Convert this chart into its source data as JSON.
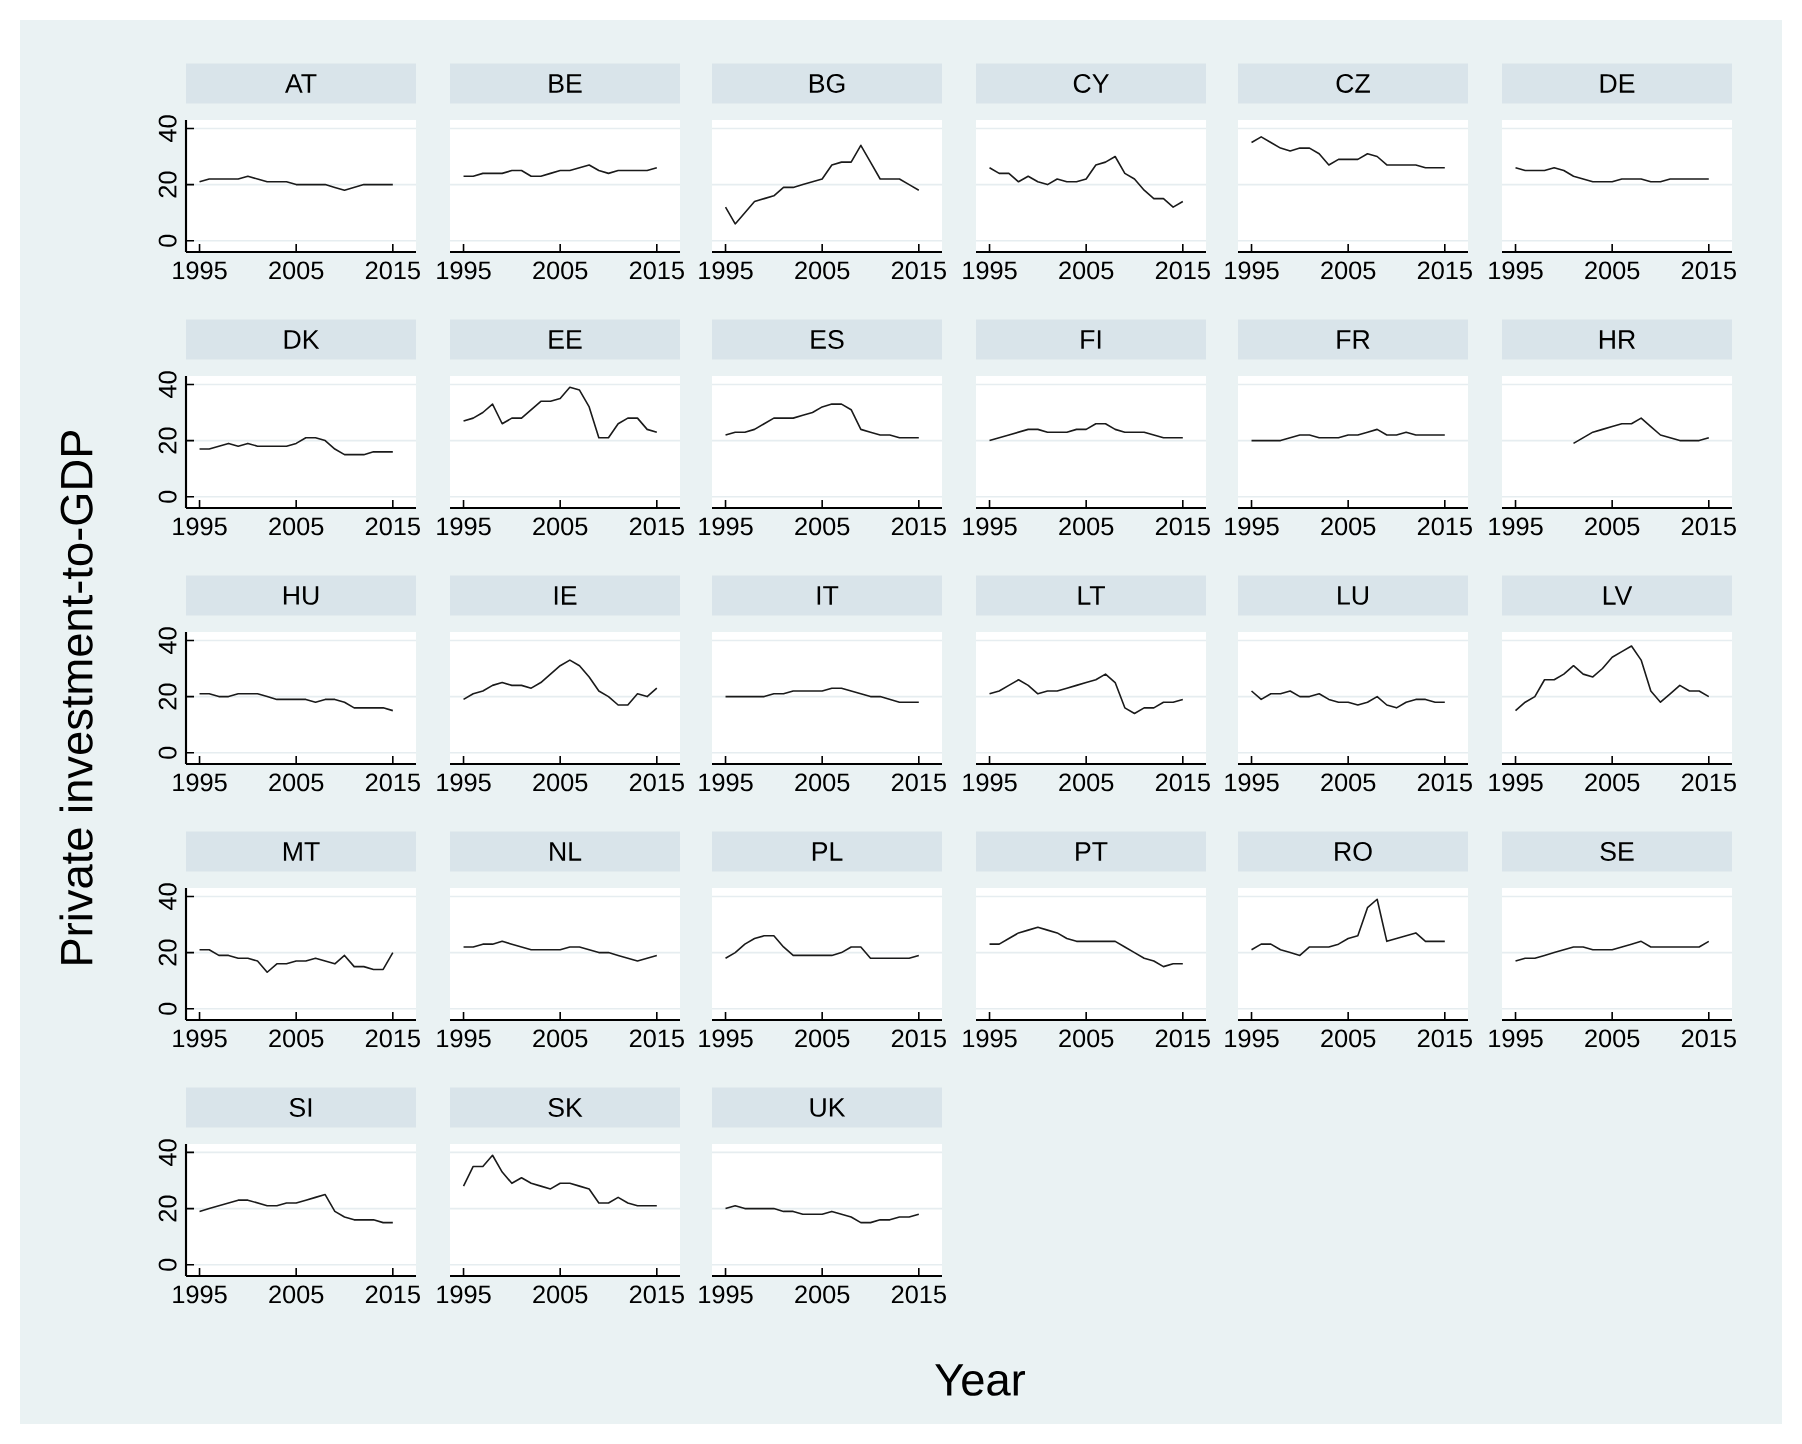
{
  "chart_data": [
    {
      "type": "line",
      "title": "AT",
      "color": "#1a1a1a",
      "grid": "y",
      "xlim": [
        1993.6,
        2017.4
      ],
      "ylim": [
        -4,
        43
      ],
      "xticks": [
        1995,
        2005,
        2015
      ],
      "yticks": [
        0,
        20,
        40
      ],
      "x": [
        1995,
        1996,
        1997,
        1998,
        1999,
        2000,
        2001,
        2002,
        2003,
        2004,
        2005,
        2006,
        2007,
        2008,
        2009,
        2010,
        2011,
        2012,
        2013,
        2014,
        2015
      ],
      "values": [
        21,
        22,
        22,
        22,
        22,
        23,
        22,
        21,
        21,
        21,
        20,
        20,
        20,
        20,
        19,
        18,
        19,
        20,
        20,
        20,
        20
      ]
    },
    {
      "type": "line",
      "title": "BE",
      "tick_labels": "x",
      "color": "#1a1a1a",
      "grid": "y",
      "xlim": [
        1993.6,
        2017.4
      ],
      "ylim": [
        -4,
        43
      ],
      "xticks": [
        1995,
        2005,
        2015
      ],
      "yticks": [
        0,
        20,
        40
      ],
      "x": [
        1995,
        1996,
        1997,
        1998,
        1999,
        2000,
        2001,
        2002,
        2003,
        2004,
        2005,
        2006,
        2007,
        2008,
        2009,
        2010,
        2011,
        2012,
        2013,
        2014,
        2015
      ],
      "values": [
        23,
        23,
        24,
        24,
        24,
        25,
        25,
        23,
        23,
        24,
        25,
        25,
        26,
        27,
        25,
        24,
        25,
        25,
        25,
        25,
        26
      ]
    },
    {
      "type": "line",
      "title": "BG",
      "tick_labels": "x",
      "color": "#1a1a1a",
      "grid": "y",
      "xlim": [
        1993.6,
        2017.4
      ],
      "ylim": [
        -4,
        43
      ],
      "xticks": [
        1995,
        2005,
        2015
      ],
      "yticks": [
        0,
        20,
        40
      ],
      "x": [
        1995,
        1996,
        1997,
        1998,
        1999,
        2000,
        2001,
        2002,
        2003,
        2004,
        2005,
        2006,
        2007,
        2008,
        2009,
        2010,
        2011,
        2012,
        2013,
        2014,
        2015
      ],
      "values": [
        12,
        6,
        10,
        14,
        15,
        16,
        19,
        19,
        20,
        21,
        22,
        27,
        28,
        28,
        34,
        28,
        22,
        22,
        22,
        20,
        18
      ]
    },
    {
      "type": "line",
      "title": "CY",
      "tick_labels": "x",
      "color": "#1a1a1a",
      "grid": "y",
      "xlim": [
        1993.6,
        2017.4
      ],
      "ylim": [
        -4,
        43
      ],
      "xticks": [
        1995,
        2005,
        2015
      ],
      "yticks": [
        0,
        20,
        40
      ],
      "x": [
        1995,
        1996,
        1997,
        1998,
        1999,
        2000,
        2001,
        2002,
        2003,
        2004,
        2005,
        2006,
        2007,
        2008,
        2009,
        2010,
        2011,
        2012,
        2013,
        2014,
        2015
      ],
      "values": [
        26,
        24,
        24,
        21,
        23,
        21,
        20,
        22,
        21,
        21,
        22,
        27,
        28,
        30,
        24,
        22,
        18,
        15,
        15,
        12,
        14
      ]
    },
    {
      "type": "line",
      "title": "CZ",
      "tick_labels": "x",
      "color": "#1a1a1a",
      "grid": "y",
      "xlim": [
        1993.6,
        2017.4
      ],
      "ylim": [
        -4,
        43
      ],
      "xticks": [
        1995,
        2005,
        2015
      ],
      "yticks": [
        0,
        20,
        40
      ],
      "x": [
        1995,
        1996,
        1997,
        1998,
        1999,
        2000,
        2001,
        2002,
        2003,
        2004,
        2005,
        2006,
        2007,
        2008,
        2009,
        2010,
        2011,
        2012,
        2013,
        2014,
        2015
      ],
      "values": [
        35,
        37,
        35,
        33,
        32,
        33,
        33,
        31,
        27,
        29,
        29,
        29,
        31,
        30,
        27,
        27,
        27,
        27,
        26,
        26,
        26
      ]
    },
    {
      "type": "line",
      "title": "DE",
      "tick_labels": "x",
      "color": "#1a1a1a",
      "grid": "y",
      "xlim": [
        1993.6,
        2017.4
      ],
      "ylim": [
        -4,
        43
      ],
      "xticks": [
        1995,
        2005,
        2015
      ],
      "yticks": [
        0,
        20,
        40
      ],
      "x": [
        1995,
        1996,
        1997,
        1998,
        1999,
        2000,
        2001,
        2002,
        2003,
        2004,
        2005,
        2006,
        2007,
        2008,
        2009,
        2010,
        2011,
        2012,
        2013,
        2014,
        2015
      ],
      "values": [
        26,
        25,
        25,
        25,
        26,
        25,
        23,
        22,
        21,
        21,
        21,
        22,
        22,
        22,
        21,
        21,
        22,
        22,
        22,
        22,
        22
      ]
    },
    {
      "type": "line",
      "title": "DK",
      "color": "#1a1a1a",
      "grid": "y",
      "xlim": [
        1993.6,
        2017.4
      ],
      "ylim": [
        -4,
        43
      ],
      "xticks": [
        1995,
        2005,
        2015
      ],
      "yticks": [
        0,
        20,
        40
      ],
      "x": [
        1995,
        1996,
        1997,
        1998,
        1999,
        2000,
        2001,
        2002,
        2003,
        2004,
        2005,
        2006,
        2007,
        2008,
        2009,
        2010,
        2011,
        2012,
        2013,
        2014,
        2015
      ],
      "values": [
        17,
        17,
        18,
        19,
        18,
        19,
        18,
        18,
        18,
        18,
        19,
        21,
        21,
        20,
        17,
        15,
        15,
        15,
        16,
        16,
        16
      ]
    },
    {
      "type": "line",
      "title": "EE",
      "tick_labels": "x",
      "color": "#1a1a1a",
      "grid": "y",
      "xlim": [
        1993.6,
        2017.4
      ],
      "ylim": [
        -4,
        43
      ],
      "xticks": [
        1995,
        2005,
        2015
      ],
      "yticks": [
        0,
        20,
        40
      ],
      "x": [
        1995,
        1996,
        1997,
        1998,
        1999,
        2000,
        2001,
        2002,
        2003,
        2004,
        2005,
        2006,
        2007,
        2008,
        2009,
        2010,
        2011,
        2012,
        2013,
        2014,
        2015
      ],
      "values": [
        27,
        28,
        30,
        33,
        26,
        28,
        28,
        31,
        34,
        34,
        35,
        39,
        38,
        32,
        21,
        21,
        26,
        28,
        28,
        24,
        23
      ]
    },
    {
      "type": "line",
      "title": "ES",
      "tick_labels": "x",
      "color": "#1a1a1a",
      "grid": "y",
      "xlim": [
        1993.6,
        2017.4
      ],
      "ylim": [
        -4,
        43
      ],
      "xticks": [
        1995,
        2005,
        2015
      ],
      "yticks": [
        0,
        20,
        40
      ],
      "x": [
        1995,
        1996,
        1997,
        1998,
        1999,
        2000,
        2001,
        2002,
        2003,
        2004,
        2005,
        2006,
        2007,
        2008,
        2009,
        2010,
        2011,
        2012,
        2013,
        2014,
        2015
      ],
      "values": [
        22,
        23,
        23,
        24,
        26,
        28,
        28,
        28,
        29,
        30,
        32,
        33,
        33,
        31,
        24,
        23,
        22,
        22,
        21,
        21,
        21
      ]
    },
    {
      "type": "line",
      "title": "FI",
      "tick_labels": "x",
      "color": "#1a1a1a",
      "grid": "y",
      "xlim": [
        1993.6,
        2017.4
      ],
      "ylim": [
        -4,
        43
      ],
      "xticks": [
        1995,
        2005,
        2015
      ],
      "yticks": [
        0,
        20,
        40
      ],
      "x": [
        1995,
        1996,
        1997,
        1998,
        1999,
        2000,
        2001,
        2002,
        2003,
        2004,
        2005,
        2006,
        2007,
        2008,
        2009,
        2010,
        2011,
        2012,
        2013,
        2014,
        2015
      ],
      "values": [
        20,
        21,
        22,
        23,
        24,
        24,
        23,
        23,
        23,
        24,
        24,
        26,
        26,
        24,
        23,
        23,
        23,
        22,
        21,
        21,
        21
      ]
    },
    {
      "type": "line",
      "title": "FR",
      "tick_labels": "x",
      "color": "#1a1a1a",
      "grid": "y",
      "xlim": [
        1993.6,
        2017.4
      ],
      "ylim": [
        -4,
        43
      ],
      "xticks": [
        1995,
        2005,
        2015
      ],
      "yticks": [
        0,
        20,
        40
      ],
      "x": [
        1995,
        1996,
        1997,
        1998,
        1999,
        2000,
        2001,
        2002,
        2003,
        2004,
        2005,
        2006,
        2007,
        2008,
        2009,
        2010,
        2011,
        2012,
        2013,
        2014,
        2015
      ],
      "values": [
        20,
        20,
        20,
        20,
        21,
        22,
        22,
        21,
        21,
        21,
        22,
        22,
        23,
        24,
        22,
        22,
        23,
        22,
        22,
        22,
        22
      ]
    },
    {
      "type": "line",
      "title": "HR",
      "tick_labels": "x",
      "color": "#1a1a1a",
      "grid": "y",
      "xlim": [
        1993.6,
        2017.4
      ],
      "ylim": [
        -4,
        43
      ],
      "xticks": [
        1995,
        2005,
        2015
      ],
      "yticks": [
        0,
        20,
        40
      ],
      "x": [
        2001,
        2002,
        2003,
        2004,
        2005,
        2006,
        2007,
        2008,
        2009,
        2010,
        2011,
        2012,
        2013,
        2014,
        2015
      ],
      "values": [
        19,
        21,
        23,
        24,
        25,
        26,
        26,
        28,
        25,
        22,
        21,
        20,
        20,
        20,
        21
      ]
    },
    {
      "type": "line",
      "title": "HU",
      "ylabel": "Private investment-to-GDP",
      "color": "#1a1a1a",
      "grid": "y",
      "xlim": [
        1993.6,
        2017.4
      ],
      "ylim": [
        -4,
        43
      ],
      "xticks": [
        1995,
        2005,
        2015
      ],
      "yticks": [
        0,
        20,
        40
      ],
      "x": [
        1995,
        1996,
        1997,
        1998,
        1999,
        2000,
        2001,
        2002,
        2003,
        2004,
        2005,
        2006,
        2007,
        2008,
        2009,
        2010,
        2011,
        2012,
        2013,
        2014,
        2015
      ],
      "values": [
        21,
        21,
        20,
        20,
        21,
        21,
        21,
        20,
        19,
        19,
        19,
        19,
        18,
        19,
        19,
        18,
        16,
        16,
        16,
        16,
        15
      ]
    },
    {
      "type": "line",
      "title": "IE",
      "tick_labels": "x",
      "color": "#1a1a1a",
      "grid": "y",
      "xlim": [
        1993.6,
        2017.4
      ],
      "ylim": [
        -4,
        43
      ],
      "xticks": [
        1995,
        2005,
        2015
      ],
      "yticks": [
        0,
        20,
        40
      ],
      "x": [
        1995,
        1996,
        1997,
        1998,
        1999,
        2000,
        2001,
        2002,
        2003,
        2004,
        2005,
        2006,
        2007,
        2008,
        2009,
        2010,
        2011,
        2012,
        2013,
        2014,
        2015
      ],
      "values": [
        19,
        21,
        22,
        24,
        25,
        24,
        24,
        23,
        25,
        28,
        31,
        33,
        31,
        27,
        22,
        20,
        17,
        17,
        21,
        20,
        23
      ]
    },
    {
      "type": "line",
      "title": "IT",
      "tick_labels": "x",
      "color": "#1a1a1a",
      "grid": "y",
      "xlim": [
        1993.6,
        2017.4
      ],
      "ylim": [
        -4,
        43
      ],
      "xticks": [
        1995,
        2005,
        2015
      ],
      "yticks": [
        0,
        20,
        40
      ],
      "x": [
        1995,
        1996,
        1997,
        1998,
        1999,
        2000,
        2001,
        2002,
        2003,
        2004,
        2005,
        2006,
        2007,
        2008,
        2009,
        2010,
        2011,
        2012,
        2013,
        2014,
        2015
      ],
      "values": [
        20,
        20,
        20,
        20,
        20,
        21,
        21,
        22,
        22,
        22,
        22,
        23,
        23,
        22,
        21,
        20,
        20,
        19,
        18,
        18,
        18
      ]
    },
    {
      "type": "line",
      "title": "LT",
      "tick_labels": "x",
      "color": "#1a1a1a",
      "grid": "y",
      "xlim": [
        1993.6,
        2017.4
      ],
      "ylim": [
        -4,
        43
      ],
      "xticks": [
        1995,
        2005,
        2015
      ],
      "yticks": [
        0,
        20,
        40
      ],
      "x": [
        1995,
        1996,
        1997,
        1998,
        1999,
        2000,
        2001,
        2002,
        2003,
        2004,
        2005,
        2006,
        2007,
        2008,
        2009,
        2010,
        2011,
        2012,
        2013,
        2014,
        2015
      ],
      "values": [
        21,
        22,
        24,
        26,
        24,
        21,
        22,
        22,
        23,
        24,
        25,
        26,
        28,
        25,
        16,
        14,
        16,
        16,
        18,
        18,
        19
      ]
    },
    {
      "type": "line",
      "title": "LU",
      "tick_labels": "x",
      "color": "#1a1a1a",
      "grid": "y",
      "xlim": [
        1993.6,
        2017.4
      ],
      "ylim": [
        -4,
        43
      ],
      "xticks": [
        1995,
        2005,
        2015
      ],
      "yticks": [
        0,
        20,
        40
      ],
      "x": [
        1995,
        1996,
        1997,
        1998,
        1999,
        2000,
        2001,
        2002,
        2003,
        2004,
        2005,
        2006,
        2007,
        2008,
        2009,
        2010,
        2011,
        2012,
        2013,
        2014,
        2015
      ],
      "values": [
        22,
        19,
        21,
        21,
        22,
        20,
        20,
        21,
        19,
        18,
        18,
        17,
        18,
        20,
        17,
        16,
        18,
        19,
        19,
        18,
        18
      ]
    },
    {
      "type": "line",
      "title": "LV",
      "tick_labels": "x",
      "color": "#1a1a1a",
      "grid": "y",
      "xlim": [
        1993.6,
        2017.4
      ],
      "ylim": [
        -4,
        43
      ],
      "xticks": [
        1995,
        2005,
        2015
      ],
      "yticks": [
        0,
        20,
        40
      ],
      "x": [
        1995,
        1996,
        1997,
        1998,
        1999,
        2000,
        2001,
        2002,
        2003,
        2004,
        2005,
        2006,
        2007,
        2008,
        2009,
        2010,
        2011,
        2012,
        2013,
        2014,
        2015
      ],
      "values": [
        15,
        18,
        20,
        26,
        26,
        28,
        31,
        28,
        27,
        30,
        34,
        36,
        38,
        33,
        22,
        18,
        21,
        24,
        22,
        22,
        20
      ]
    },
    {
      "type": "line",
      "title": "MT",
      "color": "#1a1a1a",
      "grid": "y",
      "xlim": [
        1993.6,
        2017.4
      ],
      "ylim": [
        -4,
        43
      ],
      "xticks": [
        1995,
        2005,
        2015
      ],
      "yticks": [
        0,
        20,
        40
      ],
      "x": [
        1995,
        1996,
        1997,
        1998,
        1999,
        2000,
        2001,
        2002,
        2003,
        2004,
        2005,
        2006,
        2007,
        2008,
        2009,
        2010,
        2011,
        2012,
        2013,
        2014,
        2015
      ],
      "values": [
        21,
        21,
        19,
        19,
        18,
        18,
        17,
        13,
        16,
        16,
        17,
        17,
        18,
        17,
        16,
        19,
        15,
        15,
        14,
        14,
        20
      ]
    },
    {
      "type": "line",
      "title": "NL",
      "tick_labels": "x",
      "color": "#1a1a1a",
      "grid": "y",
      "xlim": [
        1993.6,
        2017.4
      ],
      "ylim": [
        -4,
        43
      ],
      "xticks": [
        1995,
        2005,
        2015
      ],
      "yticks": [
        0,
        20,
        40
      ],
      "x": [
        1995,
        1996,
        1997,
        1998,
        1999,
        2000,
        2001,
        2002,
        2003,
        2004,
        2005,
        2006,
        2007,
        2008,
        2009,
        2010,
        2011,
        2012,
        2013,
        2014,
        2015
      ],
      "values": [
        22,
        22,
        23,
        23,
        24,
        23,
        22,
        21,
        21,
        21,
        21,
        22,
        22,
        21,
        20,
        20,
        19,
        18,
        17,
        18,
        19
      ]
    },
    {
      "type": "line",
      "title": "PL",
      "tick_labels": "x",
      "color": "#1a1a1a",
      "grid": "y",
      "xlim": [
        1993.6,
        2017.4
      ],
      "ylim": [
        -4,
        43
      ],
      "xticks": [
        1995,
        2005,
        2015
      ],
      "yticks": [
        0,
        20,
        40
      ],
      "x": [
        1995,
        1996,
        1997,
        1998,
        1999,
        2000,
        2001,
        2002,
        2003,
        2004,
        2005,
        2006,
        2007,
        2008,
        2009,
        2010,
        2011,
        2012,
        2013,
        2014,
        2015
      ],
      "values": [
        18,
        20,
        23,
        25,
        26,
        26,
        22,
        19,
        19,
        19,
        19,
        19,
        20,
        22,
        22,
        18,
        18,
        18,
        18,
        18,
        19
      ]
    },
    {
      "type": "line",
      "title": "PT",
      "tick_labels": "x",
      "color": "#1a1a1a",
      "grid": "y",
      "xlim": [
        1993.6,
        2017.4
      ],
      "ylim": [
        -4,
        43
      ],
      "xticks": [
        1995,
        2005,
        2015
      ],
      "yticks": [
        0,
        20,
        40
      ],
      "x": [
        1995,
        1996,
        1997,
        1998,
        1999,
        2000,
        2001,
        2002,
        2003,
        2004,
        2005,
        2006,
        2007,
        2008,
        2009,
        2010,
        2011,
        2012,
        2013,
        2014,
        2015
      ],
      "values": [
        23,
        23,
        25,
        27,
        28,
        29,
        28,
        27,
        25,
        24,
        24,
        24,
        24,
        24,
        22,
        20,
        18,
        17,
        15,
        16,
        16
      ]
    },
    {
      "type": "line",
      "title": "RO",
      "tick_labels": "x",
      "color": "#1a1a1a",
      "grid": "y",
      "xlim": [
        1993.6,
        2017.4
      ],
      "ylim": [
        -4,
        43
      ],
      "xticks": [
        1995,
        2005,
        2015
      ],
      "yticks": [
        0,
        20,
        40
      ],
      "x": [
        1995,
        1996,
        1997,
        1998,
        1999,
        2000,
        2001,
        2002,
        2003,
        2004,
        2005,
        2006,
        2007,
        2008,
        2009,
        2010,
        2011,
        2012,
        2013,
        2014,
        2015
      ],
      "values": [
        21,
        23,
        23,
        21,
        20,
        19,
        22,
        22,
        22,
        23,
        25,
        26,
        36,
        39,
        24,
        25,
        26,
        27,
        24,
        24,
        24
      ]
    },
    {
      "type": "line",
      "title": "SE",
      "tick_labels": "x",
      "color": "#1a1a1a",
      "grid": "y",
      "xlim": [
        1993.6,
        2017.4
      ],
      "ylim": [
        -4,
        43
      ],
      "xticks": [
        1995,
        2005,
        2015
      ],
      "yticks": [
        0,
        20,
        40
      ],
      "x": [
        1995,
        1996,
        1997,
        1998,
        1999,
        2000,
        2001,
        2002,
        2003,
        2004,
        2005,
        2006,
        2007,
        2008,
        2009,
        2010,
        2011,
        2012,
        2013,
        2014,
        2015
      ],
      "values": [
        17,
        18,
        18,
        19,
        20,
        21,
        22,
        22,
        21,
        21,
        21,
        22,
        23,
        24,
        22,
        22,
        22,
        22,
        22,
        22,
        24
      ]
    },
    {
      "type": "line",
      "title": "SI",
      "color": "#1a1a1a",
      "grid": "y",
      "xlim": [
        1993.6,
        2017.4
      ],
      "ylim": [
        -4,
        43
      ],
      "xticks": [
        1995,
        2005,
        2015
      ],
      "yticks": [
        0,
        20,
        40
      ],
      "x": [
        1995,
        1996,
        1997,
        1998,
        1999,
        2000,
        2001,
        2002,
        2003,
        2004,
        2005,
        2006,
        2007,
        2008,
        2009,
        2010,
        2011,
        2012,
        2013,
        2014,
        2015
      ],
      "values": [
        19,
        20,
        21,
        22,
        23,
        23,
        22,
        21,
        21,
        22,
        22,
        23,
        24,
        25,
        19,
        17,
        16,
        16,
        16,
        15,
        15
      ]
    },
    {
      "type": "line",
      "title": "SK",
      "tick_labels": "x",
      "color": "#1a1a1a",
      "grid": "y",
      "xlim": [
        1993.6,
        2017.4
      ],
      "ylim": [
        -4,
        43
      ],
      "xticks": [
        1995,
        2005,
        2015
      ],
      "yticks": [
        0,
        20,
        40
      ],
      "x": [
        1995,
        1996,
        1997,
        1998,
        1999,
        2000,
        2001,
        2002,
        2003,
        2004,
        2005,
        2006,
        2007,
        2008,
        2009,
        2010,
        2011,
        2012,
        2013,
        2014,
        2015
      ],
      "values": [
        28,
        35,
        35,
        39,
        33,
        29,
        31,
        29,
        28,
        27,
        29,
        29,
        28,
        27,
        22,
        22,
        24,
        22,
        21,
        21,
        21
      ]
    },
    {
      "type": "line",
      "title": "UK",
      "xlabel": "Year",
      "tick_labels": "x",
      "color": "#1a1a1a",
      "grid": "y",
      "xlim": [
        1993.6,
        2017.4
      ],
      "ylim": [
        -4,
        43
      ],
      "xticks": [
        1995,
        2005,
        2015
      ],
      "yticks": [
        0,
        20,
        40
      ],
      "x": [
        1995,
        1996,
        1997,
        1998,
        1999,
        2000,
        2001,
        2002,
        2003,
        2004,
        2005,
        2006,
        2007,
        2008,
        2009,
        2010,
        2011,
        2012,
        2013,
        2014,
        2015
      ],
      "values": [
        20,
        21,
        20,
        20,
        20,
        20,
        19,
        19,
        18,
        18,
        18,
        19,
        18,
        17,
        15,
        15,
        16,
        16,
        17,
        17,
        18
      ]
    }
  ]
}
